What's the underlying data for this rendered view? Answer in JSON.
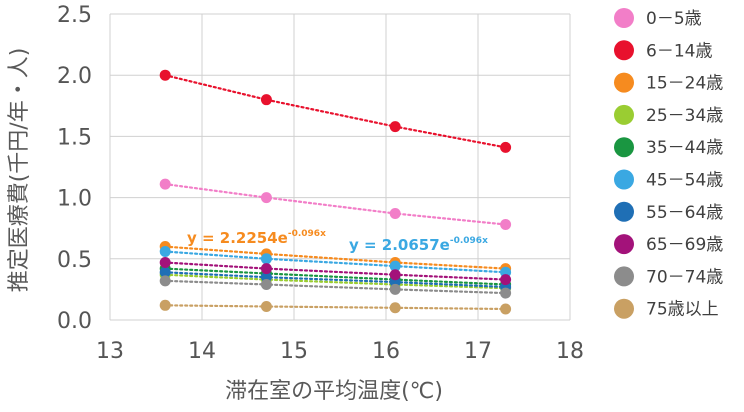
{
  "chart_data": {
    "type": "scatter",
    "xlabel": "滞在室の平均温度(℃)",
    "ylabel": "推定医療費(千円/年・人)",
    "xlim": [
      13,
      18
    ],
    "ylim": [
      0,
      2.5
    ],
    "x_ticks": [
      "13",
      "14",
      "15",
      "16",
      "17",
      "18"
    ],
    "y_ticks": [
      "0.0",
      "0.5",
      "1.0",
      "1.5",
      "2.0",
      "2.5"
    ],
    "grid": true,
    "legend_position": "right",
    "trendlines": "exponential, dotted",
    "series": [
      {
        "name": "0－5歳",
        "color": "#f27ec8",
        "x": [
          13.6,
          14.7,
          16.1,
          17.3
        ],
        "y": [
          1.11,
          1.0,
          0.87,
          0.78
        ]
      },
      {
        "name": "6－14歳",
        "color": "#e8112d",
        "x": [
          13.6,
          14.7,
          16.1,
          17.3
        ],
        "y": [
          2.0,
          1.8,
          1.58,
          1.41
        ]
      },
      {
        "name": "15－24歳",
        "color": "#f68b1f",
        "x": [
          13.6,
          14.7,
          16.1,
          17.3
        ],
        "y": [
          0.6,
          0.54,
          0.47,
          0.42
        ]
      },
      {
        "name": "25－34歳",
        "color": "#9acd32",
        "x": [
          13.6,
          14.7,
          16.1,
          17.3
        ],
        "y": [
          0.37,
          0.33,
          0.29,
          0.26
        ]
      },
      {
        "name": "35－44歳",
        "color": "#1a9641",
        "x": [
          13.6,
          14.7,
          16.1,
          17.3
        ],
        "y": [
          0.42,
          0.38,
          0.33,
          0.29
        ]
      },
      {
        "name": "45－54歳",
        "color": "#3aa8e2",
        "x": [
          13.6,
          14.7,
          16.1,
          17.3
        ],
        "y": [
          0.56,
          0.5,
          0.44,
          0.39
        ]
      },
      {
        "name": "55－64歳",
        "color": "#1f6fb5",
        "x": [
          13.6,
          14.7,
          16.1,
          17.3
        ],
        "y": [
          0.39,
          0.35,
          0.31,
          0.27
        ]
      },
      {
        "name": "65－69歳",
        "color": "#a3127a",
        "x": [
          13.6,
          14.7,
          16.1,
          17.3
        ],
        "y": [
          0.47,
          0.42,
          0.37,
          0.33
        ]
      },
      {
        "name": "70－74歳",
        "color": "#8c8c8c",
        "x": [
          13.6,
          14.7,
          16.1,
          17.3
        ],
        "y": [
          0.32,
          0.29,
          0.25,
          0.22
        ]
      },
      {
        "name": "75歳以上",
        "color": "#c9a063",
        "x": [
          13.6,
          14.7,
          16.1,
          17.3
        ],
        "y": [
          0.12,
          0.11,
          0.1,
          0.09
        ]
      }
    ],
    "annotations": [
      {
        "base": "y = 2.2254e",
        "sup": "-0.096x",
        "color": "#f68b1f"
      },
      {
        "base": "y = 2.0657e",
        "sup": "-0.096x",
        "color": "#3aa8e2"
      }
    ]
  }
}
